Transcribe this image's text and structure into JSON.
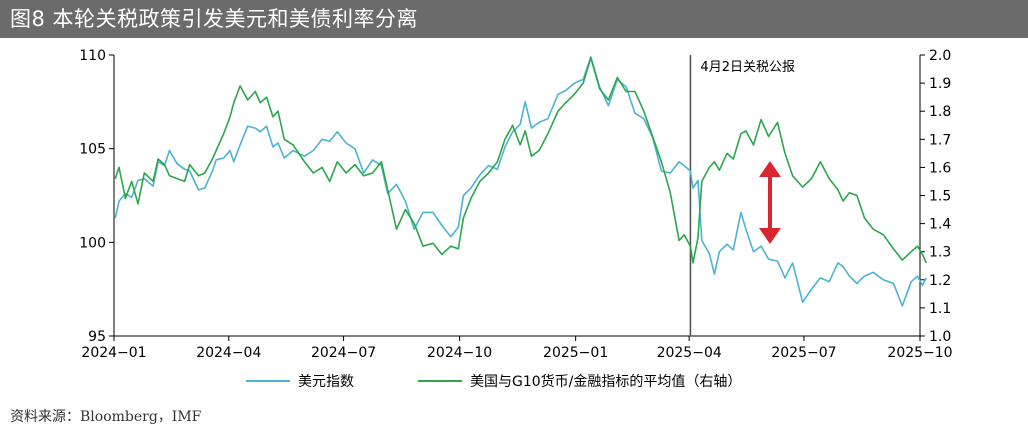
{
  "title": "图8 本轮关税政策引发美元和美债利率分离",
  "source": "资料来源：Bloomberg，IMF",
  "chart_data": {
    "type": "line",
    "annotation": "4月2日关税公报",
    "annotation_date": "2025-04-02",
    "left_axis": {
      "ylim": [
        95,
        110
      ],
      "ticks": [
        "95",
        "100",
        "105",
        "110"
      ]
    },
    "right_axis": {
      "ylim": [
        1.0,
        2.0
      ],
      "ticks": [
        "1.0",
        "1.1",
        "1.2",
        "1.3",
        "1.4",
        "1.5",
        "1.6",
        "1.7",
        "1.8",
        "1.9",
        "2.0"
      ]
    },
    "x_ticks": [
      "2024−01",
      "2024−04",
      "2024−07",
      "2024−10",
      "2025−01",
      "2025−04",
      "2025−07",
      "2025−10"
    ],
    "x_tick_dates": [
      "2024-01-01",
      "2024-04-01",
      "2024-07-01",
      "2024-10-01",
      "2025-01-01",
      "2025-04-01",
      "2025-07-01",
      "2025-10-01"
    ],
    "grid": false,
    "legend_position": "bottom",
    "series": [
      {
        "name": "美元指数",
        "axis": "left",
        "color": "#4bb3d3",
        "points": [
          [
            "2024-01-02",
            101.3
          ],
          [
            "2024-01-05",
            102.2
          ],
          [
            "2024-01-10",
            102.6
          ],
          [
            "2024-01-15",
            102.4
          ],
          [
            "2024-01-20",
            103.3
          ],
          [
            "2024-01-25",
            103.4
          ],
          [
            "2024-02-01",
            103.0
          ],
          [
            "2024-02-05",
            104.3
          ],
          [
            "2024-02-10",
            104.1
          ],
          [
            "2024-02-14",
            104.9
          ],
          [
            "2024-02-20",
            104.2
          ],
          [
            "2024-02-26",
            103.9
          ],
          [
            "2024-03-01",
            103.8
          ],
          [
            "2024-03-08",
            102.8
          ],
          [
            "2024-03-13",
            102.9
          ],
          [
            "2024-03-19",
            103.8
          ],
          [
            "2024-03-22",
            104.4
          ],
          [
            "2024-03-28",
            104.5
          ],
          [
            "2024-04-02",
            104.9
          ],
          [
            "2024-04-05",
            104.3
          ],
          [
            "2024-04-10",
            105.2
          ],
          [
            "2024-04-16",
            106.2
          ],
          [
            "2024-04-22",
            106.1
          ],
          [
            "2024-04-26",
            105.9
          ],
          [
            "2024-05-01",
            106.2
          ],
          [
            "2024-05-06",
            105.1
          ],
          [
            "2024-05-10",
            105.3
          ],
          [
            "2024-05-15",
            104.5
          ],
          [
            "2024-05-22",
            104.9
          ],
          [
            "2024-05-31",
            104.6
          ],
          [
            "2024-06-07",
            104.9
          ],
          [
            "2024-06-14",
            105.5
          ],
          [
            "2024-06-20",
            105.4
          ],
          [
            "2024-06-26",
            105.9
          ],
          [
            "2024-07-03",
            105.3
          ],
          [
            "2024-07-10",
            105.0
          ],
          [
            "2024-07-17",
            103.7
          ],
          [
            "2024-07-24",
            104.4
          ],
          [
            "2024-07-31",
            104.1
          ],
          [
            "2024-08-05",
            102.6
          ],
          [
            "2024-08-12",
            103.1
          ],
          [
            "2024-08-19",
            102.2
          ],
          [
            "2024-08-26",
            100.7
          ],
          [
            "2024-09-02",
            101.6
          ],
          [
            "2024-09-10",
            101.6
          ],
          [
            "2024-09-17",
            100.9
          ],
          [
            "2024-09-24",
            100.3
          ],
          [
            "2024-09-30",
            100.8
          ],
          [
            "2024-10-04",
            102.5
          ],
          [
            "2024-10-10",
            102.9
          ],
          [
            "2024-10-17",
            103.6
          ],
          [
            "2024-10-24",
            104.1
          ],
          [
            "2024-10-31",
            103.9
          ],
          [
            "2024-11-06",
            105.1
          ],
          [
            "2024-11-12",
            105.9
          ],
          [
            "2024-11-18",
            106.3
          ],
          [
            "2024-11-22",
            107.5
          ],
          [
            "2024-11-27",
            106.1
          ],
          [
            "2024-12-03",
            106.4
          ],
          [
            "2024-12-10",
            106.6
          ],
          [
            "2024-12-18",
            107.9
          ],
          [
            "2024-12-24",
            108.1
          ],
          [
            "2024-12-31",
            108.5
          ],
          [
            "2025-01-07",
            108.7
          ],
          [
            "2025-01-13",
            109.9
          ],
          [
            "2025-01-20",
            108.3
          ],
          [
            "2025-01-27",
            107.3
          ],
          [
            "2025-02-03",
            108.7
          ],
          [
            "2025-02-10",
            108.3
          ],
          [
            "2025-02-17",
            106.9
          ],
          [
            "2025-02-24",
            106.6
          ],
          [
            "2025-03-03",
            105.6
          ],
          [
            "2025-03-10",
            103.8
          ],
          [
            "2025-03-17",
            103.7
          ],
          [
            "2025-03-24",
            104.3
          ],
          [
            "2025-03-28",
            104.1
          ],
          [
            "2025-04-02",
            103.8
          ],
          [
            "2025-04-04",
            102.9
          ],
          [
            "2025-04-08",
            103.3
          ],
          [
            "2025-04-11",
            100.1
          ],
          [
            "2025-04-17",
            99.4
          ],
          [
            "2025-04-21",
            98.3
          ],
          [
            "2025-04-25",
            99.5
          ],
          [
            "2025-05-01",
            99.9
          ],
          [
            "2025-05-06",
            99.6
          ],
          [
            "2025-05-12",
            101.6
          ],
          [
            "2025-05-16",
            100.7
          ],
          [
            "2025-05-22",
            99.5
          ],
          [
            "2025-05-28",
            99.8
          ],
          [
            "2025-06-03",
            99.1
          ],
          [
            "2025-06-10",
            99.0
          ],
          [
            "2025-06-16",
            98.1
          ],
          [
            "2025-06-22",
            98.9
          ],
          [
            "2025-06-30",
            96.8
          ],
          [
            "2025-07-07",
            97.5
          ],
          [
            "2025-07-14",
            98.1
          ],
          [
            "2025-07-21",
            97.9
          ],
          [
            "2025-07-28",
            98.9
          ],
          [
            "2025-08-01",
            98.7
          ],
          [
            "2025-08-06",
            98.2
          ],
          [
            "2025-08-12",
            97.8
          ],
          [
            "2025-08-18",
            98.2
          ],
          [
            "2025-08-25",
            98.4
          ],
          [
            "2025-09-02",
            98.0
          ],
          [
            "2025-09-10",
            97.8
          ],
          [
            "2025-09-17",
            96.6
          ],
          [
            "2025-09-24",
            97.9
          ],
          [
            "2025-09-29",
            98.2
          ],
          [
            "2025-10-03",
            97.7
          ],
          [
            "2025-10-06",
            98.1
          ]
        ]
      },
      {
        "name": "美国与G10货币/金融指标的平均值（右轴）",
        "axis": "right",
        "color": "#2ca64b",
        "points": [
          [
            "2024-01-02",
            1.56
          ],
          [
            "2024-01-05",
            1.6
          ],
          [
            "2024-01-10",
            1.49
          ],
          [
            "2024-01-15",
            1.55
          ],
          [
            "2024-01-20",
            1.47
          ],
          [
            "2024-01-25",
            1.58
          ],
          [
            "2024-02-01",
            1.55
          ],
          [
            "2024-02-05",
            1.63
          ],
          [
            "2024-02-10",
            1.61
          ],
          [
            "2024-02-14",
            1.57
          ],
          [
            "2024-02-20",
            1.56
          ],
          [
            "2024-02-26",
            1.55
          ],
          [
            "2024-03-01",
            1.61
          ],
          [
            "2024-03-08",
            1.57
          ],
          [
            "2024-03-13",
            1.58
          ],
          [
            "2024-03-19",
            1.63
          ],
          [
            "2024-03-22",
            1.66
          ],
          [
            "2024-03-28",
            1.72
          ],
          [
            "2024-04-02",
            1.78
          ],
          [
            "2024-04-05",
            1.83
          ],
          [
            "2024-04-10",
            1.89
          ],
          [
            "2024-04-16",
            1.84
          ],
          [
            "2024-04-22",
            1.87
          ],
          [
            "2024-04-26",
            1.83
          ],
          [
            "2024-05-01",
            1.85
          ],
          [
            "2024-05-06",
            1.78
          ],
          [
            "2024-05-10",
            1.8
          ],
          [
            "2024-05-15",
            1.7
          ],
          [
            "2024-05-22",
            1.68
          ],
          [
            "2024-05-31",
            1.62
          ],
          [
            "2024-06-07",
            1.58
          ],
          [
            "2024-06-14",
            1.6
          ],
          [
            "2024-06-20",
            1.55
          ],
          [
            "2024-06-26",
            1.62
          ],
          [
            "2024-07-03",
            1.58
          ],
          [
            "2024-07-10",
            1.61
          ],
          [
            "2024-07-17",
            1.57
          ],
          [
            "2024-07-24",
            1.58
          ],
          [
            "2024-07-31",
            1.62
          ],
          [
            "2024-08-05",
            1.52
          ],
          [
            "2024-08-12",
            1.38
          ],
          [
            "2024-08-19",
            1.45
          ],
          [
            "2024-08-26",
            1.4
          ],
          [
            "2024-09-02",
            1.32
          ],
          [
            "2024-09-10",
            1.33
          ],
          [
            "2024-09-17",
            1.29
          ],
          [
            "2024-09-24",
            1.32
          ],
          [
            "2024-09-30",
            1.31
          ],
          [
            "2024-10-04",
            1.42
          ],
          [
            "2024-10-10",
            1.49
          ],
          [
            "2024-10-17",
            1.55
          ],
          [
            "2024-10-24",
            1.58
          ],
          [
            "2024-10-31",
            1.62
          ],
          [
            "2024-11-06",
            1.7
          ],
          [
            "2024-11-12",
            1.75
          ],
          [
            "2024-11-18",
            1.68
          ],
          [
            "2024-11-22",
            1.73
          ],
          [
            "2024-11-27",
            1.64
          ],
          [
            "2024-12-03",
            1.66
          ],
          [
            "2024-12-10",
            1.72
          ],
          [
            "2024-12-18",
            1.8
          ],
          [
            "2024-12-24",
            1.83
          ],
          [
            "2024-12-31",
            1.86
          ],
          [
            "2025-01-07",
            1.9
          ],
          [
            "2025-01-13",
            1.99
          ],
          [
            "2025-01-20",
            1.88
          ],
          [
            "2025-01-27",
            1.84
          ],
          [
            "2025-02-03",
            1.92
          ],
          [
            "2025-02-10",
            1.87
          ],
          [
            "2025-02-17",
            1.87
          ],
          [
            "2025-02-24",
            1.8
          ],
          [
            "2025-03-03",
            1.71
          ],
          [
            "2025-03-10",
            1.62
          ],
          [
            "2025-03-17",
            1.51
          ],
          [
            "2025-03-24",
            1.34
          ],
          [
            "2025-03-28",
            1.36
          ],
          [
            "2025-04-02",
            1.32
          ],
          [
            "2025-04-04",
            1.26
          ],
          [
            "2025-04-08",
            1.35
          ],
          [
            "2025-04-11",
            1.55
          ],
          [
            "2025-04-17",
            1.6
          ],
          [
            "2025-04-21",
            1.62
          ],
          [
            "2025-04-25",
            1.59
          ],
          [
            "2025-05-01",
            1.65
          ],
          [
            "2025-05-06",
            1.63
          ],
          [
            "2025-05-12",
            1.72
          ],
          [
            "2025-05-16",
            1.73
          ],
          [
            "2025-05-22",
            1.68
          ],
          [
            "2025-05-28",
            1.77
          ],
          [
            "2025-06-03",
            1.71
          ],
          [
            "2025-06-10",
            1.76
          ],
          [
            "2025-06-16",
            1.65
          ],
          [
            "2025-06-22",
            1.57
          ],
          [
            "2025-06-30",
            1.53
          ],
          [
            "2025-07-07",
            1.56
          ],
          [
            "2025-07-14",
            1.62
          ],
          [
            "2025-07-21",
            1.56
          ],
          [
            "2025-07-28",
            1.52
          ],
          [
            "2025-08-01",
            1.48
          ],
          [
            "2025-08-06",
            1.51
          ],
          [
            "2025-08-12",
            1.5
          ],
          [
            "2025-08-18",
            1.42
          ],
          [
            "2025-08-25",
            1.38
          ],
          [
            "2025-09-02",
            1.36
          ],
          [
            "2025-09-10",
            1.31
          ],
          [
            "2025-09-17",
            1.27
          ],
          [
            "2025-09-24",
            1.3
          ],
          [
            "2025-09-29",
            1.32
          ],
          [
            "2025-10-03",
            1.29
          ],
          [
            "2025-10-06",
            1.26
          ]
        ]
      }
    ]
  }
}
